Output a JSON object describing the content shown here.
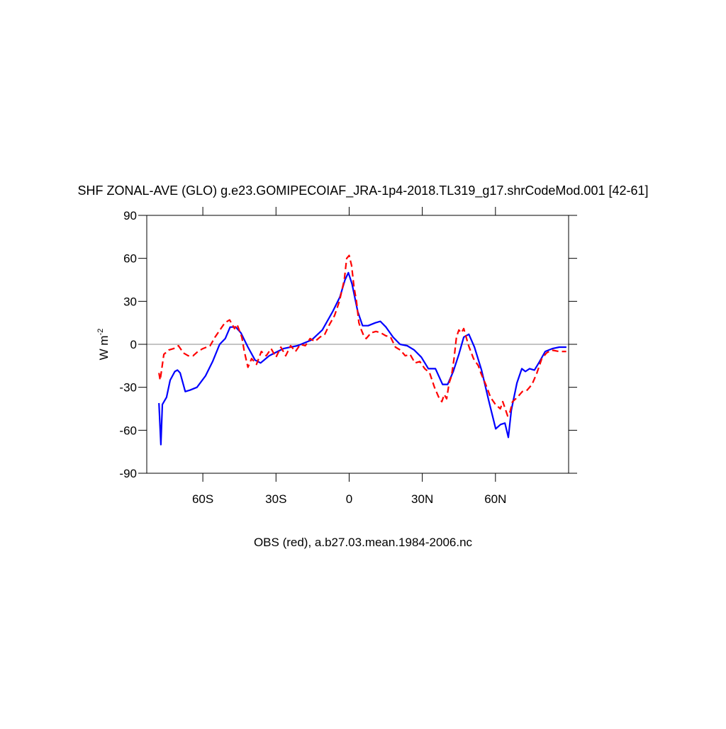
{
  "chart_data": {
    "type": "line",
    "title": "SHF ZONAL-AVE (GLO) g.e23.GOMIPECOIAF_JRA-1p4-2018.TL319_g17.shrCodeMod.001 [42-61]",
    "xlabel": "OBS (red), a.b27.03.mean.1984-2006.nc",
    "ylabel": "W m",
    "ylabel_superscript": "-2",
    "xlim": [
      -83,
      90
    ],
    "ylim": [
      -90,
      90
    ],
    "xticks": [
      {
        "value": -60,
        "label": "60S"
      },
      {
        "value": -30,
        "label": "30S"
      },
      0,
      {
        "value": 30,
        "label": "30N"
      },
      {
        "value": 60,
        "label": "60N"
      }
    ],
    "yticks": [
      -90,
      -60,
      -30,
      0,
      30,
      60,
      90
    ],
    "series": [
      {
        "color": "#0000ff",
        "dash": false,
        "x": [
          -78,
          -77.2,
          -76.6,
          -74.9,
          -73.4,
          -71.5,
          -70.4,
          -69.3,
          -67.2,
          -65.3,
          -62.4,
          -58.9,
          -56,
          -53.1,
          -50.8,
          -48.8,
          -46.5,
          -44.4,
          -41.5,
          -38.6,
          -36.3,
          -32.8,
          -27,
          -21.2,
          -15.4,
          -11,
          -6.7,
          -3.8,
          -1.7,
          -0.3,
          1.2,
          3.5,
          5.5,
          7.8,
          10.7,
          12.8,
          15.1,
          18,
          20.9,
          23.8,
          26.7,
          29.6,
          32.5,
          35.4,
          38.3,
          40.4,
          42.7,
          45,
          47,
          49.1,
          51.4,
          54.3,
          57.2,
          60.1,
          62.1,
          63.9,
          65.3,
          66.5,
          68.8,
          70.8,
          72.3,
          74,
          76,
          78.1,
          80.4,
          83.3,
          86.2,
          89.1
        ],
        "values": [
          -41,
          -70,
          -42,
          -37,
          -25,
          -19,
          -18,
          -20,
          -33,
          -32,
          -30,
          -22,
          -12,
          0,
          4,
          12,
          12,
          8,
          -2,
          -11,
          -13,
          -8,
          -3,
          -1,
          3,
          10,
          23,
          33,
          45,
          50,
          42,
          23,
          13,
          13,
          15,
          16,
          12,
          5,
          0,
          -1,
          -4,
          -9,
          -17,
          -17,
          -28,
          -28,
          -19,
          -7,
          5,
          7,
          -2,
          -18,
          -39,
          -59,
          -56,
          -55,
          -65,
          -46,
          -27,
          -17,
          -19,
          -17,
          -18,
          -12,
          -5,
          -3,
          -2,
          -2
        ]
      },
      {
        "color": "#ff0000",
        "dash": true,
        "x": [
          -78,
          -77.5,
          -76,
          -74,
          -72,
          -70,
          -68,
          -66,
          -64,
          -62,
          -60,
          -57,
          -55,
          -53,
          -51,
          -49,
          -47,
          -46,
          -44,
          -43,
          -41.5,
          -40,
          -38,
          -36,
          -34,
          -32,
          -30,
          -28,
          -26,
          -24,
          -22,
          -20,
          -18,
          -16,
          -14,
          -12,
          -10,
          -8,
          -6,
          -4,
          -2,
          -1,
          0,
          1,
          2,
          3,
          4,
          5,
          6,
          7,
          9,
          11,
          13,
          15,
          17,
          19,
          21,
          23,
          25,
          27,
          29,
          31,
          33,
          35,
          37,
          38,
          39,
          40,
          41,
          42,
          43,
          44,
          45,
          46,
          47,
          48,
          49,
          51,
          53,
          54,
          56,
          58,
          60,
          62,
          63,
          64,
          65,
          66,
          67,
          69,
          71,
          73,
          75,
          77,
          79,
          81,
          83,
          86,
          89
        ],
        "values": [
          -20,
          -25,
          -7,
          -4,
          -3,
          -1,
          -6,
          -8,
          -8,
          -5,
          -3,
          -1,
          5,
          10,
          15,
          17,
          11,
          14,
          5,
          -5,
          -16,
          -10,
          -14,
          -5,
          -8,
          -3,
          -9,
          -2,
          -8,
          -1,
          -5,
          0,
          -1,
          4,
          2,
          5,
          7,
          14,
          20,
          30,
          45,
          60,
          62,
          55,
          40,
          30,
          15,
          10,
          6,
          4,
          8,
          9,
          8,
          6,
          5,
          -2,
          -4,
          -8,
          -7,
          -13,
          -12,
          -17,
          -20,
          -30,
          -38,
          -40,
          -35,
          -38,
          -27,
          -22,
          -10,
          5,
          10,
          8,
          11,
          5,
          -1,
          -10,
          -15,
          -20,
          -28,
          -37,
          -42,
          -45,
          -40,
          -45,
          -50,
          -47,
          -40,
          -37,
          -33,
          -32,
          -28,
          -20,
          -10,
          -6,
          -4,
          -5,
          -5
        ]
      }
    ],
    "zero_line": true
  }
}
